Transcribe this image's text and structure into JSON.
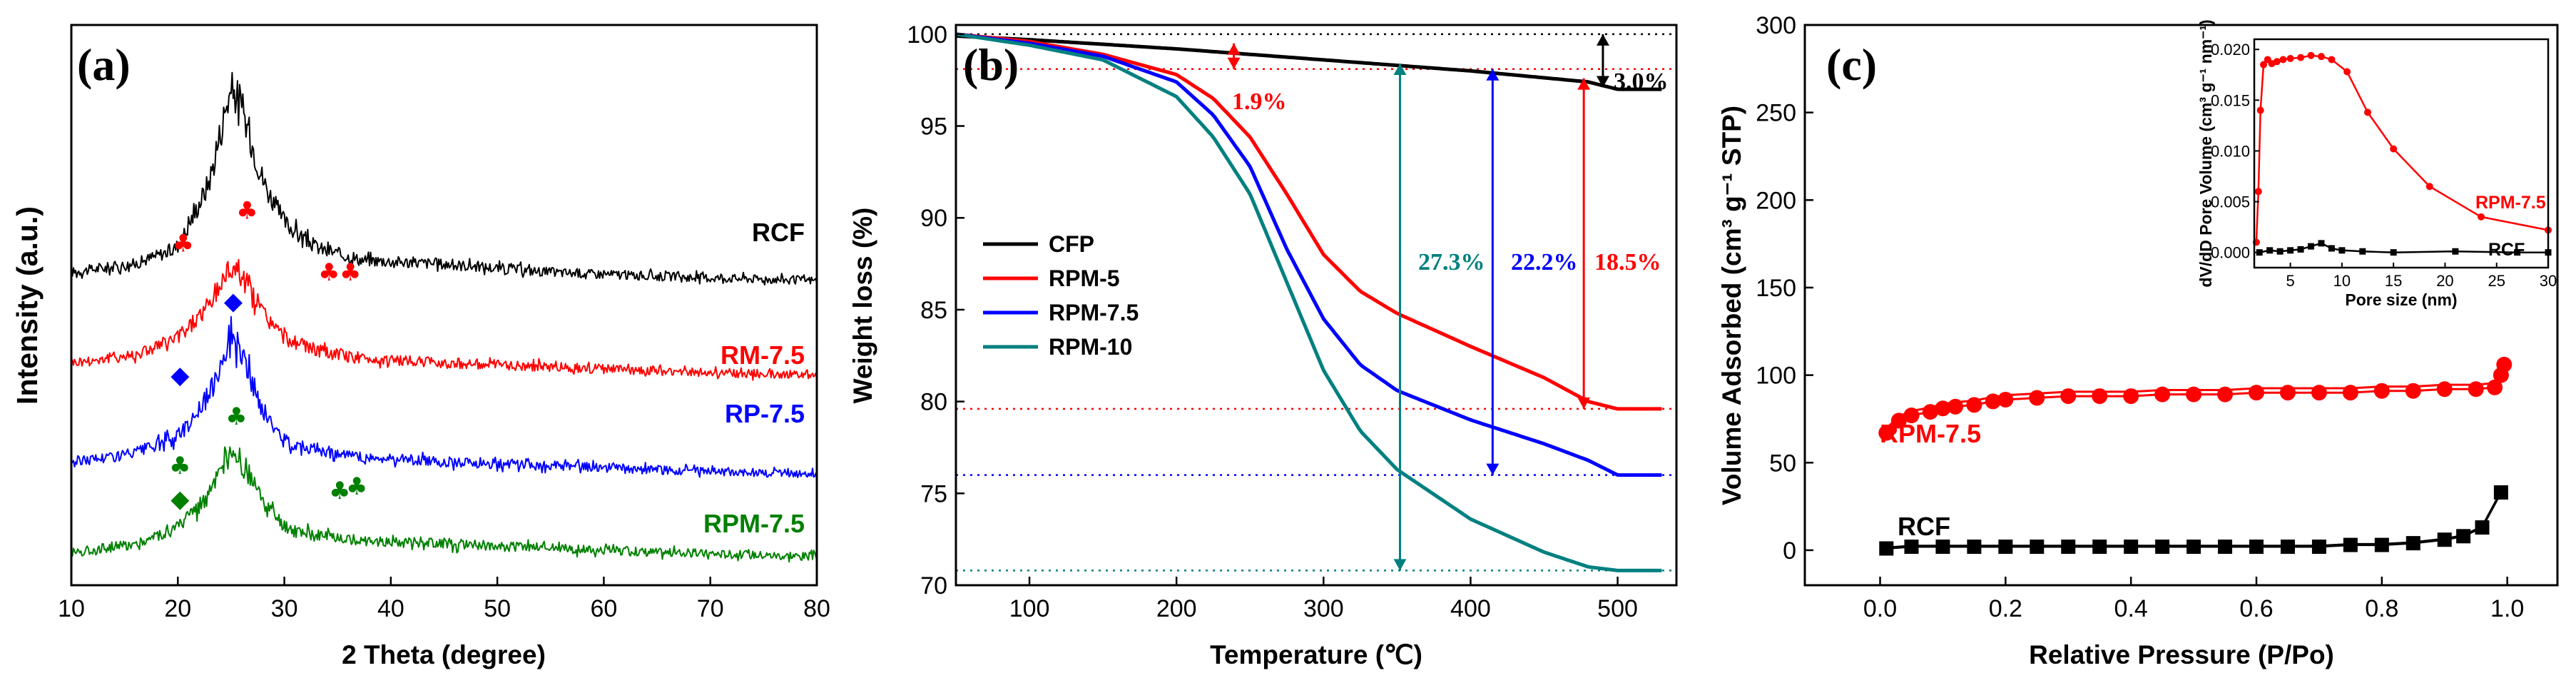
{
  "figure": {
    "colors": {
      "black": "#000000",
      "red": "#ff0000",
      "blue": "#0000ff",
      "green": "#008000",
      "teal": "#008080"
    },
    "chart_data": [
      {
        "panel": "(a)",
        "type": "line",
        "title": "",
        "xlabel": "2 Theta (degree)",
        "ylabel": "Intensity (a.u.)",
        "xlim": [
          10,
          80
        ],
        "xticks": [
          10,
          20,
          30,
          40,
          50,
          60,
          70,
          80
        ],
        "yticks_shown": false,
        "series": [
          {
            "name": "RCF",
            "color": "#000000",
            "x": [
              10,
              16,
              20,
              23,
              25,
              26,
              28,
              30,
              33,
              37,
              45,
              55,
              65,
              80
            ],
            "values": [
              3.2,
              3.3,
              3.5,
              4.3,
              5.5,
              5.2,
              4.3,
              3.8,
              3.5,
              3.35,
              3.3,
              3.2,
              3.15,
              3.1
            ]
          },
          {
            "name": "RM-7.5",
            "color": "#ff0000",
            "x": [
              10,
              16,
              20,
              23,
              25,
              26,
              28,
              30,
              33,
              37,
              45,
              55,
              65,
              80
            ],
            "values": [
              2.1,
              2.2,
              2.4,
              2.8,
              3.3,
              3.2,
              2.7,
              2.4,
              2.25,
              2.15,
              2.1,
              2.05,
              2.0,
              1.95
            ]
          },
          {
            "name": "RP-7.5",
            "color": "#0000ff",
            "x": [
              10,
              16,
              20,
              23,
              25,
              26,
              28,
              30,
              33,
              37,
              45,
              55,
              65,
              80
            ],
            "values": [
              0.9,
              1.0,
              1.2,
              1.7,
              2.5,
              2.2,
              1.5,
              1.15,
              1.05,
              0.95,
              0.9,
              0.85,
              0.8,
              0.75
            ]
          },
          {
            "name": "RPM-7.5",
            "color": "#008000",
            "x": [
              10,
              16,
              20,
              23,
              25,
              26,
              28,
              30,
              33,
              37,
              45,
              55,
              65,
              80
            ],
            "values": [
              -0.2,
              -0.1,
              0.1,
              0.5,
              1.0,
              0.9,
              0.4,
              0.1,
              0.0,
              -0.05,
              -0.1,
              -0.15,
              -0.2,
              -0.25
            ]
          }
        ],
        "markers": [
          {
            "symbol": "♣",
            "color": "#ff0000",
            "x": [
              20.5,
              26.5,
              34.2,
              36.2
            ]
          },
          {
            "symbol": "◆",
            "color": "#0000ff",
            "x": [
              25.2,
              20.2
            ]
          },
          {
            "symbol": "♣",
            "color": "#008000",
            "x": [
              20.2,
              25.5,
              35.2,
              36.8
            ]
          },
          {
            "symbol": "◆",
            "color": "#008000",
            "x": [
              20.2
            ]
          }
        ]
      },
      {
        "panel": "(b)",
        "type": "line",
        "title": "",
        "xlabel": "Temperature (℃)",
        "ylabel": "Weight loss (%)",
        "xlim": [
          50,
          540
        ],
        "ylim": [
          70,
          100.5
        ],
        "xticks": [
          100,
          200,
          300,
          400,
          500
        ],
        "yticks": [
          70,
          75,
          80,
          85,
          90,
          95,
          100
        ],
        "legend": "center-left",
        "series": [
          {
            "name": "CFP",
            "color": "#000000",
            "x": [
              50,
              100,
              200,
              300,
              400,
              480,
              500,
              530
            ],
            "values": [
              99.9,
              99.7,
              99.2,
              98.6,
              98.0,
              97.4,
              97.0,
              97.0
            ]
          },
          {
            "name": "RPM-5",
            "color": "#ff0000",
            "x": [
              50,
              100,
              150,
              200,
              225,
              250,
              275,
              300,
              325,
              350,
              400,
              450,
              480,
              500,
              530
            ],
            "values": [
              100,
              99.6,
              98.9,
              97.8,
              96.5,
              94.4,
              91.3,
              88.0,
              86.0,
              84.8,
              83.0,
              81.3,
              80.0,
              79.6,
              79.6
            ]
          },
          {
            "name": "RPM-7.5",
            "color": "#0000ff",
            "x": [
              50,
              100,
              150,
              200,
              225,
              250,
              275,
              300,
              325,
              350,
              400,
              450,
              480,
              500,
              530
            ],
            "values": [
              100,
              99.5,
              98.8,
              97.4,
              95.6,
              92.8,
              88.3,
              84.5,
              82.0,
              80.6,
              79.0,
              77.7,
              76.8,
              76.0,
              76.0
            ]
          },
          {
            "name": "RPM-10",
            "color": "#008080",
            "x": [
              50,
              100,
              150,
              200,
              225,
              250,
              275,
              300,
              325,
              350,
              400,
              450,
              480,
              500,
              530
            ],
            "values": [
              100,
              99.4,
              98.6,
              96.6,
              94.4,
              91.3,
              86.5,
              81.7,
              78.4,
              76.3,
              73.6,
              71.8,
              71.0,
              70.8,
              70.8
            ]
          }
        ],
        "reference_lines": [
          {
            "y": 100,
            "color": "#000000"
          },
          {
            "y": 98.1,
            "color": "#ff0000"
          },
          {
            "y": 79.6,
            "color": "#ff0000"
          },
          {
            "y": 76.0,
            "color": "#0000ff"
          },
          {
            "y": 70.8,
            "color": "#008080"
          }
        ],
        "annotations": [
          {
            "text": "1.9%",
            "color": "#ff0000"
          },
          {
            "text": "3.0%",
            "color": "#000000"
          },
          {
            "text": "27.3%",
            "color": "#008080"
          },
          {
            "text": "22.2%",
            "color": "#0000ff"
          },
          {
            "text": "18.5%",
            "color": "#ff0000"
          }
        ]
      },
      {
        "panel": "(c)",
        "type": "scatter",
        "title": "",
        "xlabel": "Relative Pressure (P/Po)",
        "ylabel": "Volume Adsorbed (cm³ g⁻¹ STP)",
        "xlim": [
          -0.12,
          1.08
        ],
        "ylim": [
          -20,
          300
        ],
        "xticks": [
          0.0,
          0.2,
          0.4,
          0.6,
          0.8,
          1.0
        ],
        "yticks": [
          0,
          50,
          100,
          150,
          200,
          250,
          300
        ],
        "series": [
          {
            "name": "RPM-7.5",
            "color": "#ff0000",
            "marker": "circle",
            "x": [
              0.01,
              0.03,
              0.05,
              0.08,
              0.1,
              0.12,
              0.15,
              0.18,
              0.2,
              0.25,
              0.3,
              0.35,
              0.4,
              0.45,
              0.5,
              0.55,
              0.6,
              0.65,
              0.7,
              0.75,
              0.8,
              0.85,
              0.9,
              0.95,
              0.98,
              0.99,
              0.995
            ],
            "values": [
              67,
              74,
              77,
              79,
              81,
              82,
              83,
              85,
              86,
              87,
              88,
              88,
              88,
              89,
              89,
              89,
              90,
              90,
              90,
              90,
              91,
              91,
              92,
              92,
              93,
              100,
              106
            ]
          },
          {
            "name": "RCF",
            "color": "#000000",
            "marker": "square",
            "x": [
              0.01,
              0.05,
              0.1,
              0.15,
              0.2,
              0.25,
              0.3,
              0.35,
              0.4,
              0.45,
              0.5,
              0.55,
              0.6,
              0.65,
              0.7,
              0.75,
              0.8,
              0.85,
              0.9,
              0.93,
              0.96,
              0.99
            ],
            "values": [
              1,
              2,
              2,
              2,
              2,
              2,
              2,
              2,
              2,
              2,
              2,
              2,
              2,
              2,
              2,
              3,
              3,
              4,
              6,
              8,
              13,
              33
            ]
          }
        ],
        "inset": {
          "type": "line",
          "xlabel": "Pore size (nm)",
          "ylabel": "dV/dD Pore Volume (cm³ g⁻¹ nm⁻¹)",
          "xlim": [
            1.5,
            30
          ],
          "ylim": [
            -0.0015,
            0.021
          ],
          "xticks": [
            5,
            10,
            15,
            20,
            25,
            30
          ],
          "yticks": [
            "0.000",
            "0.005",
            "0.010",
            "0.015",
            "0.020"
          ],
          "series": [
            {
              "name": "RPM-7.5",
              "color": "#ff0000",
              "x": [
                1.7,
                1.9,
                2.1,
                2.4,
                2.8,
                3.2,
                3.7,
                4.3,
                5.0,
                6.0,
                7.0,
                8.0,
                9.0,
                10.5,
                12.5,
                15.0,
                18.5,
                23.5,
                30.0
              ],
              "values": [
                0.001,
                0.006,
                0.014,
                0.0185,
                0.019,
                0.0186,
                0.0188,
                0.019,
                0.0191,
                0.0192,
                0.0194,
                0.0193,
                0.019,
                0.0178,
                0.0138,
                0.0102,
                0.0065,
                0.0035,
                0.0022
              ]
            },
            {
              "name": "RCF",
              "color": "#000000",
              "x": [
                2,
                3,
                4,
                5,
                6,
                7,
                8,
                9,
                10,
                12,
                15,
                21,
                27,
                30
              ],
              "values": [
                0.0,
                0.0002,
                0.0001,
                0.0002,
                0.0003,
                0.0006,
                0.0009,
                0.0004,
                0.0002,
                0.0001,
                0.0,
                0.0001,
                0.0,
                0.0
              ]
            }
          ]
        }
      }
    ]
  }
}
